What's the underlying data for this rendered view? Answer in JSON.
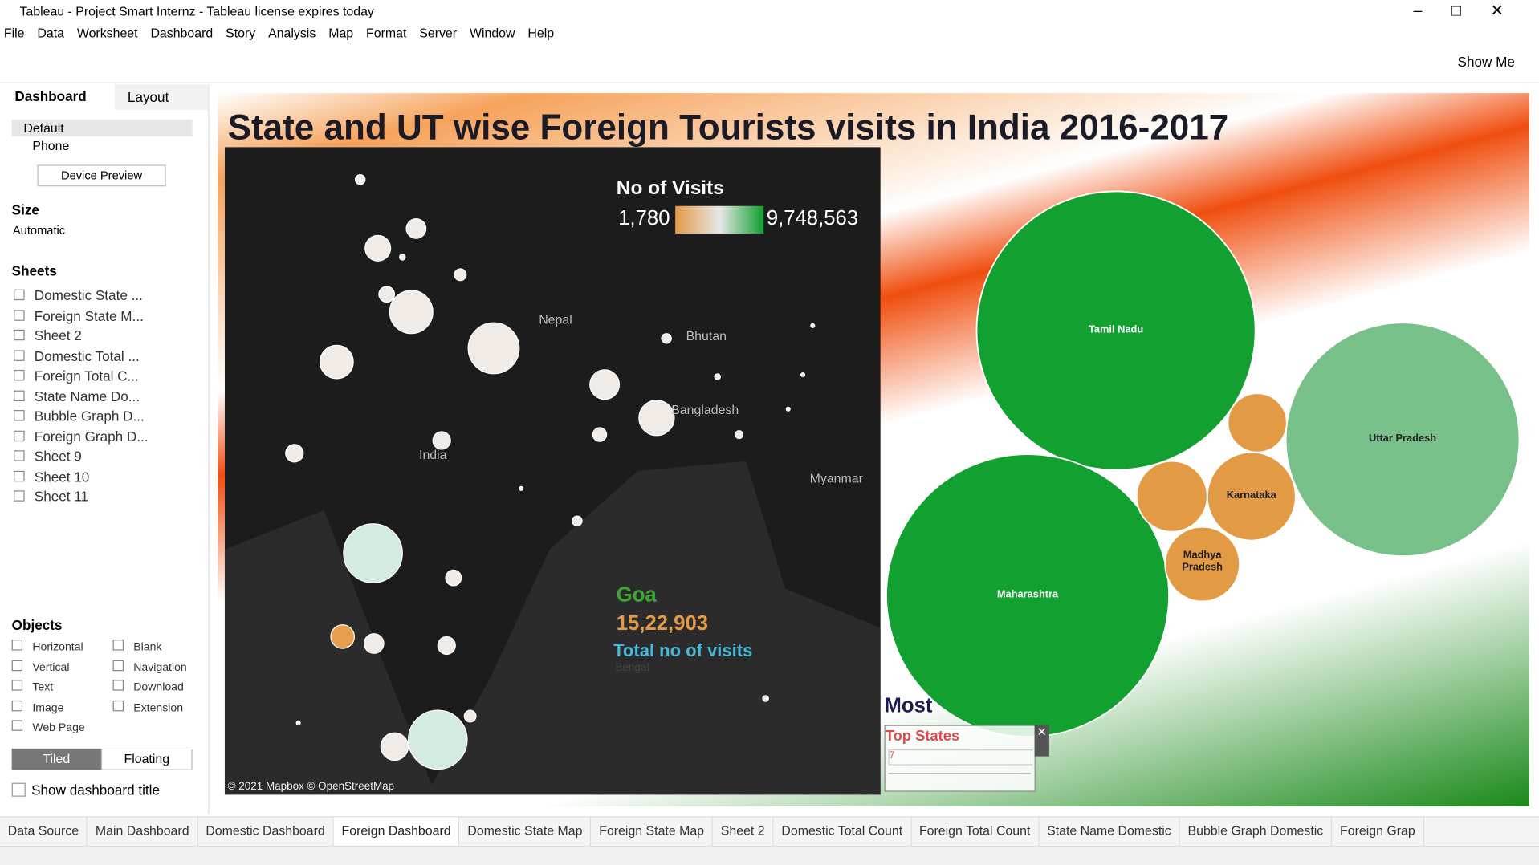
{
  "window": {
    "title": "Tableau - Project Smart Internz - Tableau license expires today"
  },
  "menu": [
    "File",
    "Data",
    "Worksheet",
    "Dashboard",
    "Story",
    "Analysis",
    "Map",
    "Format",
    "Server",
    "Window",
    "Help"
  ],
  "toolbar": {
    "show_me": "Show Me"
  },
  "side": {
    "tabs": [
      "Dashboard",
      "Layout"
    ],
    "devices": [
      "Default",
      "Phone"
    ],
    "device_preview": "Device Preview",
    "size_title": "Size",
    "size_value": "Automatic",
    "sheets_title": "Sheets",
    "sheets": [
      "Domestic State ...",
      "Foreign State M...",
      "Sheet 2",
      "Domestic Total ...",
      "Foreign Total C...",
      "State Name Do...",
      "Bubble Graph D...",
      "Foreign Graph D...",
      "Sheet 9",
      "Sheet 10",
      "Sheet 11"
    ],
    "objects_title": "Objects",
    "objects": [
      "Horizontal",
      "Blank",
      "Vertical",
      "Navigation",
      "Text",
      "Download",
      "Image",
      "Extension",
      "Web Page"
    ],
    "tiled": "Tiled",
    "floating": "Floating",
    "show_title": "Show dashboard title"
  },
  "dashboard": {
    "title": "State and UT wise Foreign Tourists visits in India 2016-2017",
    "legend": {
      "title": "No of Visits",
      "min": "1,780",
      "max": "9,748,563"
    },
    "map_labels": [
      "Nepal",
      "Bhutan",
      "Bangladesh",
      "India",
      "Myanmar",
      "Bengal"
    ],
    "attribution": "© 2021 Mapbox © OpenStreetMap",
    "annotation": {
      "state": "Goa",
      "visits": "15,22,903",
      "caption": "Total no of visits"
    },
    "bubbles": [
      "Tamil Nadu",
      "Uttar Pradesh",
      "Maharashtra",
      "Karnataka",
      "Madhya Pradesh"
    ],
    "filter": {
      "heading": "Most",
      "title": "Top States",
      "value": "7"
    }
  },
  "tabs": [
    "Data Source",
    "Main Dashboard",
    "Domestic Dashboard",
    "Foreign Dashboard",
    "Domestic State Map",
    "Foreign State Map",
    "Sheet 2",
    "Domestic Total Count",
    "Foreign Total Count",
    "State Name Domestic",
    "Bubble Graph Domestic",
    "Foreign Grap"
  ]
}
